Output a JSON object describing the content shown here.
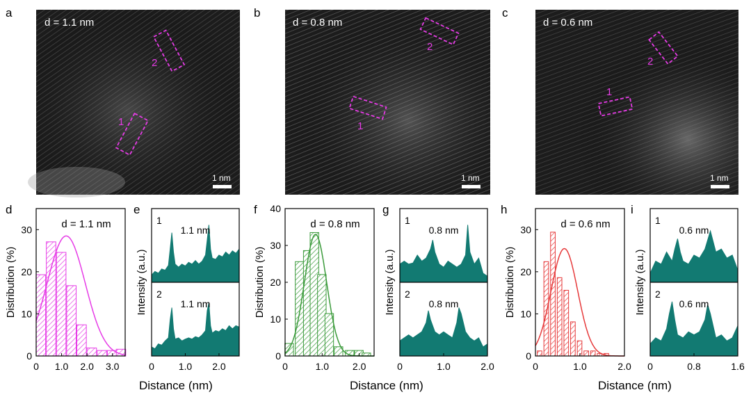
{
  "top_panels": [
    {
      "letter": "a",
      "d_label": "d = 1.1 nm",
      "scale": "1 nm",
      "region_labels": [
        "1",
        "2"
      ]
    },
    {
      "letter": "b",
      "d_label": "d = 0.8 nm",
      "scale": "1 nm",
      "region_labels": [
        "1",
        "2"
      ]
    },
    {
      "letter": "c",
      "d_label": "d = 0.6 nm",
      "scale": "1 nm",
      "region_labels": [
        "1",
        "2"
      ]
    }
  ],
  "colors": {
    "magenta": "#e63be6",
    "green": "#3a9a3a",
    "red": "#e6393a",
    "teal": "#127a72",
    "image_bg": "#1c1c1c"
  },
  "chart_data": [
    {
      "panel": "d",
      "type": "bar",
      "d_label": "d = 1.1 nm",
      "xlabel": "",
      "ylabel": "Distribution (%)",
      "xlim": [
        0,
        3.5
      ],
      "ylim": [
        0,
        35
      ],
      "xticks": [
        "0",
        "1.0",
        "2.0",
        "3.0"
      ],
      "yticks": [
        "0",
        "10",
        "20",
        "30"
      ],
      "bin_width": 0.4,
      "x": [
        0.2,
        0.6,
        1.0,
        1.4,
        1.8,
        2.2,
        2.6,
        3.0,
        3.35
      ],
      "values": [
        19.3,
        27.1,
        24.6,
        16.7,
        7.4,
        1.9,
        1.3,
        1.3,
        1.6
      ],
      "fit": {
        "type": "gaussian",
        "amplitude": 28.5,
        "center": 1.18,
        "sigma": 0.75
      },
      "color": "#e63be6"
    },
    {
      "panel": "e",
      "type": "area",
      "xlabel": "",
      "ylabel": "Intensity (a.u.)",
      "xlim": [
        0,
        2.6
      ],
      "xticks": [
        "0",
        "1.0",
        "2.0"
      ],
      "rows": [
        {
          "label": "1",
          "annotation": "1.1 nm",
          "x": [
            0.0,
            0.1,
            0.2,
            0.3,
            0.4,
            0.5,
            0.55,
            0.6,
            0.65,
            0.7,
            0.8,
            0.9,
            1.0,
            1.1,
            1.2,
            1.3,
            1.4,
            1.5,
            1.6,
            1.65,
            1.7,
            1.75,
            1.8,
            1.9,
            2.0,
            2.1,
            2.2,
            2.3,
            2.4,
            2.5,
            2.6
          ],
          "y": [
            0.12,
            0.18,
            0.15,
            0.22,
            0.2,
            0.28,
            0.55,
            0.82,
            0.5,
            0.3,
            0.25,
            0.3,
            0.27,
            0.33,
            0.3,
            0.36,
            0.3,
            0.35,
            0.45,
            0.7,
            0.95,
            0.55,
            0.4,
            0.38,
            0.45,
            0.42,
            0.5,
            0.45,
            0.52,
            0.48,
            0.55
          ]
        },
        {
          "label": "2",
          "annotation": "1.1 nm",
          "x": [
            0.0,
            0.1,
            0.2,
            0.3,
            0.4,
            0.5,
            0.55,
            0.6,
            0.65,
            0.7,
            0.8,
            0.9,
            1.0,
            1.1,
            1.2,
            1.3,
            1.4,
            1.5,
            1.6,
            1.65,
            1.7,
            1.75,
            1.8,
            1.9,
            2.0,
            2.1,
            2.2,
            2.3,
            2.4,
            2.5,
            2.6
          ],
          "y": [
            0.15,
            0.12,
            0.2,
            0.18,
            0.25,
            0.3,
            0.6,
            0.8,
            0.45,
            0.28,
            0.3,
            0.25,
            0.28,
            0.3,
            0.28,
            0.32,
            0.3,
            0.35,
            0.42,
            0.75,
            0.88,
            0.5,
            0.38,
            0.42,
            0.4,
            0.45,
            0.42,
            0.5,
            0.45,
            0.5,
            0.48
          ]
        }
      ],
      "color": "#127a72"
    },
    {
      "panel": "f",
      "type": "bar",
      "d_label": "d = 0.8 nm",
      "xlabel": "",
      "ylabel": "Distribution (%)",
      "xlim": [
        0,
        2.4
      ],
      "ylim": [
        0,
        40
      ],
      "xticks": [
        "0",
        "1.0",
        "2.0"
      ],
      "yticks": [
        "0",
        "10",
        "20",
        "30",
        "40"
      ],
      "bin_width": 0.25,
      "x": [
        0.12,
        0.4,
        0.62,
        0.8,
        1.0,
        1.2,
        1.45,
        1.75,
        2.0,
        2.2
      ],
      "values": [
        3.4,
        25.6,
        28.6,
        33.5,
        22.1,
        11.5,
        2.5,
        1.5,
        1.5,
        0.8
      ],
      "fit": {
        "type": "gaussian",
        "amplitude": 33,
        "center": 0.82,
        "sigma": 0.3
      },
      "color": "#3a9a3a"
    },
    {
      "panel": "g",
      "type": "area",
      "xlabel": "",
      "ylabel": "Intensity (a.u.)",
      "xlim": [
        0,
        2.0
      ],
      "xticks": [
        "0",
        "1.0",
        "2.0"
      ],
      "rows": [
        {
          "label": "1",
          "annotation": "0.8 nm",
          "x": [
            0.0,
            0.1,
            0.2,
            0.3,
            0.4,
            0.5,
            0.6,
            0.7,
            0.75,
            0.8,
            0.9,
            1.0,
            1.1,
            1.2,
            1.3,
            1.4,
            1.5,
            1.55,
            1.6,
            1.7,
            1.8,
            1.9,
            2.0
          ],
          "y": [
            0.3,
            0.35,
            0.3,
            0.32,
            0.45,
            0.35,
            0.4,
            0.55,
            0.7,
            0.5,
            0.3,
            0.25,
            0.35,
            0.3,
            0.25,
            0.3,
            0.45,
            0.95,
            0.5,
            0.3,
            0.4,
            0.15,
            0.1
          ]
        },
        {
          "label": "2",
          "annotation": "0.8 nm",
          "x": [
            0.0,
            0.1,
            0.2,
            0.3,
            0.4,
            0.5,
            0.6,
            0.65,
            0.7,
            0.8,
            0.9,
            1.0,
            1.1,
            1.2,
            1.3,
            1.35,
            1.4,
            1.5,
            1.6,
            1.7,
            1.8,
            1.9,
            2.0
          ],
          "y": [
            0.25,
            0.3,
            0.35,
            0.3,
            0.35,
            0.4,
            0.55,
            0.75,
            0.6,
            0.4,
            0.35,
            0.4,
            0.35,
            0.3,
            0.55,
            0.8,
            0.7,
            0.4,
            0.3,
            0.25,
            0.3,
            0.15,
            0.2
          ]
        }
      ],
      "color": "#127a72"
    },
    {
      "panel": "h",
      "type": "bar",
      "d_label": "d = 0.6 nm",
      "xlabel": "",
      "ylabel": "Distribution (%)",
      "xlim": [
        0,
        2.0
      ],
      "ylim": [
        0,
        35
      ],
      "xticks": [
        "0",
        "1.0",
        "2.0"
      ],
      "yticks": [
        "0",
        "10",
        "20",
        "30"
      ],
      "bin_width": 0.12,
      "x": [
        0.1,
        0.25,
        0.4,
        0.55,
        0.7,
        0.85,
        1.0,
        1.15,
        1.3,
        1.45,
        1.6
      ],
      "values": [
        1.2,
        22.4,
        29.4,
        18.6,
        15.6,
        8.1,
        3.6,
        1.2,
        1.2,
        0.6,
        0.6
      ],
      "fit": {
        "type": "gaussian",
        "amplitude": 25.5,
        "center": 0.65,
        "sigma": 0.3
      },
      "color": "#e6393a"
    },
    {
      "panel": "i",
      "type": "area",
      "xlabel": "",
      "ylabel": "Intensity (a.u.)",
      "xlim": [
        0,
        1.6
      ],
      "xticks": [
        "0",
        "0.8",
        "1.6"
      ],
      "rows": [
        {
          "label": "1",
          "annotation": "0.6 nm",
          "x": [
            0.0,
            0.1,
            0.2,
            0.3,
            0.4,
            0.45,
            0.5,
            0.55,
            0.6,
            0.7,
            0.8,
            0.9,
            1.0,
            1.05,
            1.1,
            1.2,
            1.3,
            1.4,
            1.5,
            1.6
          ],
          "y": [
            0.15,
            0.35,
            0.3,
            0.5,
            0.35,
            0.55,
            0.72,
            0.5,
            0.35,
            0.3,
            0.45,
            0.4,
            0.55,
            0.7,
            0.85,
            0.5,
            0.55,
            0.4,
            0.45,
            0.2
          ]
        },
        {
          "label": "2",
          "annotation": "0.6 nm",
          "x": [
            0.0,
            0.1,
            0.2,
            0.3,
            0.35,
            0.4,
            0.45,
            0.5,
            0.6,
            0.7,
            0.8,
            0.9,
            1.0,
            1.05,
            1.1,
            1.2,
            1.3,
            1.4,
            1.5,
            1.6
          ],
          "y": [
            0.2,
            0.3,
            0.25,
            0.45,
            0.7,
            0.9,
            0.6,
            0.35,
            0.3,
            0.4,
            0.35,
            0.4,
            0.6,
            0.85,
            0.7,
            0.3,
            0.35,
            0.25,
            0.3,
            0.5
          ]
        }
      ],
      "color": "#127a72"
    }
  ],
  "shared_xlabel": "Distance (nm)"
}
